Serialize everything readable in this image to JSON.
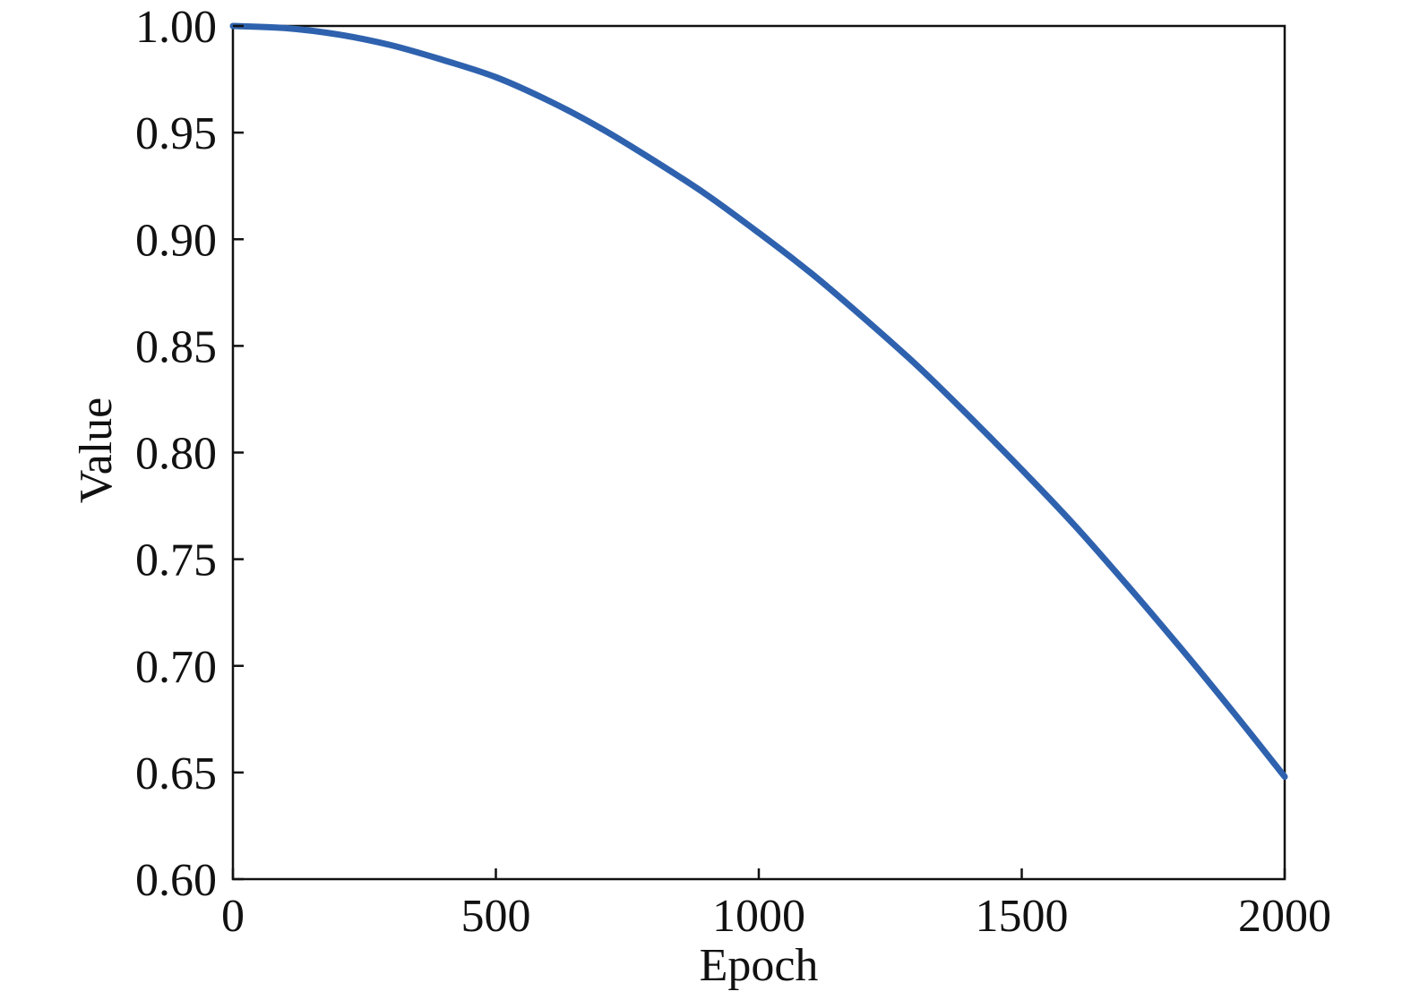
{
  "chart_data": {
    "type": "line",
    "title": "",
    "xlabel": "Epoch",
    "ylabel": "Value",
    "xlim": [
      0,
      2000
    ],
    "ylim": [
      0.6,
      1.0
    ],
    "x_ticks": [
      "0",
      "500",
      "1000",
      "1500",
      "2000"
    ],
    "y_ticks": [
      "0.60",
      "0.65",
      "0.70",
      "0.75",
      "0.80",
      "0.85",
      "0.90",
      "0.95",
      "1.00"
    ],
    "grid": false,
    "legend": "none",
    "line_color": "#2f62ae",
    "series": [
      {
        "x": [
          0,
          100,
          200,
          300,
          400,
          500,
          600,
          700,
          800,
          900,
          1000,
          1100,
          1200,
          1300,
          1400,
          1500,
          1600,
          1700,
          1800,
          1900,
          2000
        ],
        "y": [
          1.0,
          0.999,
          0.996,
          0.991,
          0.984,
          0.976,
          0.965,
          0.952,
          0.937,
          0.921,
          0.903,
          0.884,
          0.863,
          0.841,
          0.817,
          0.792,
          0.766,
          0.738,
          0.709,
          0.679,
          0.648
        ]
      }
    ]
  }
}
